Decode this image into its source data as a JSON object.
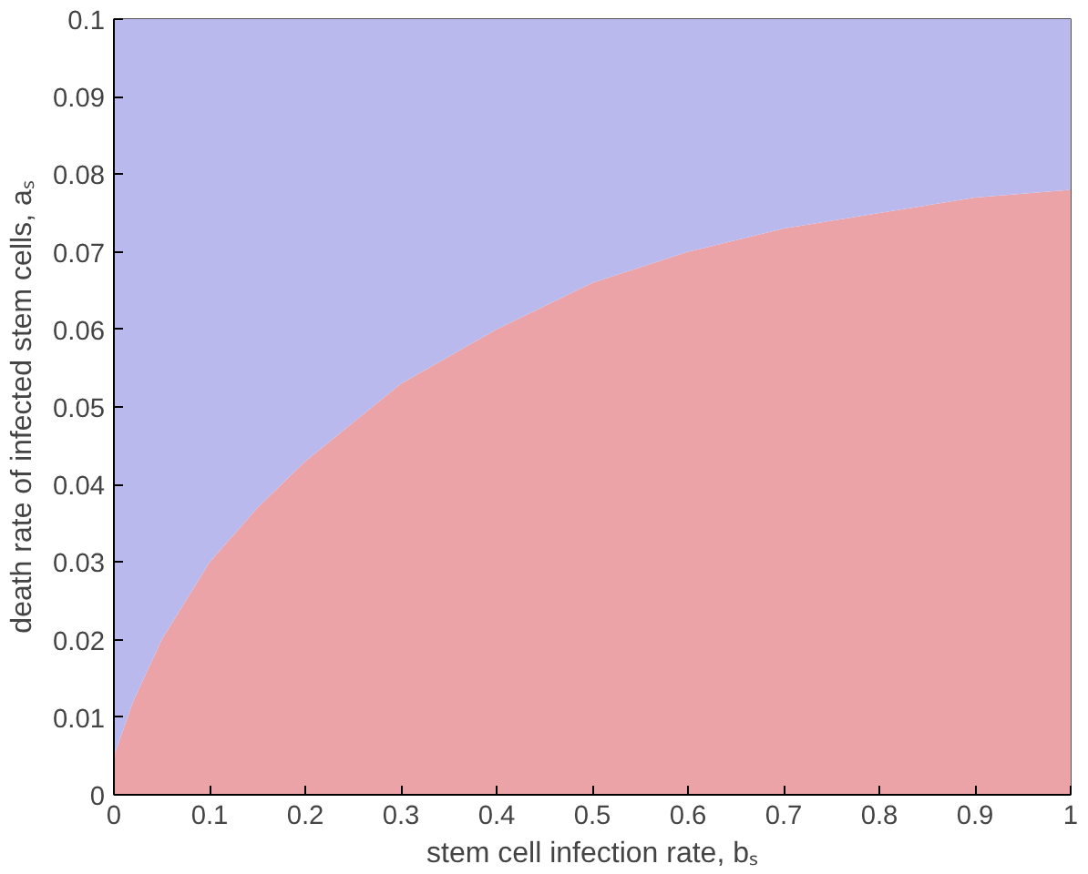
{
  "chart_data": {
    "type": "area",
    "stacked": true,
    "xlabel": "stem cell infection rate, bₛ",
    "ylabel": "death rate of infected stem cells, aₛ",
    "x": [
      0,
      0.02,
      0.05,
      0.1,
      0.15,
      0.2,
      0.3,
      0.4,
      0.5,
      0.6,
      0.7,
      0.8,
      0.9,
      1.0
    ],
    "series": [
      {
        "color": "#eba3a8",
        "values": [
          0.005,
          0.012,
          0.02,
          0.03,
          0.037,
          0.043,
          0.053,
          0.06,
          0.066,
          0.07,
          0.073,
          0.075,
          0.077,
          0.078
        ]
      },
      {
        "color": "#b9b9ee",
        "values": [
          0.095,
          0.088,
          0.08,
          0.07,
          0.063,
          0.057,
          0.047,
          0.04,
          0.034,
          0.03,
          0.027,
          0.025,
          0.023,
          0.022
        ]
      }
    ],
    "xlim": [
      0,
      1
    ],
    "ylim": [
      0,
      0.1
    ],
    "xticks": [
      0,
      0.1,
      0.2,
      0.3,
      0.4,
      0.5,
      0.6,
      0.7,
      0.8,
      0.9,
      1
    ],
    "yticks": [
      0,
      0.01,
      0.02,
      0.03,
      0.04,
      0.05,
      0.06,
      0.07,
      0.08,
      0.09,
      0.1
    ]
  }
}
